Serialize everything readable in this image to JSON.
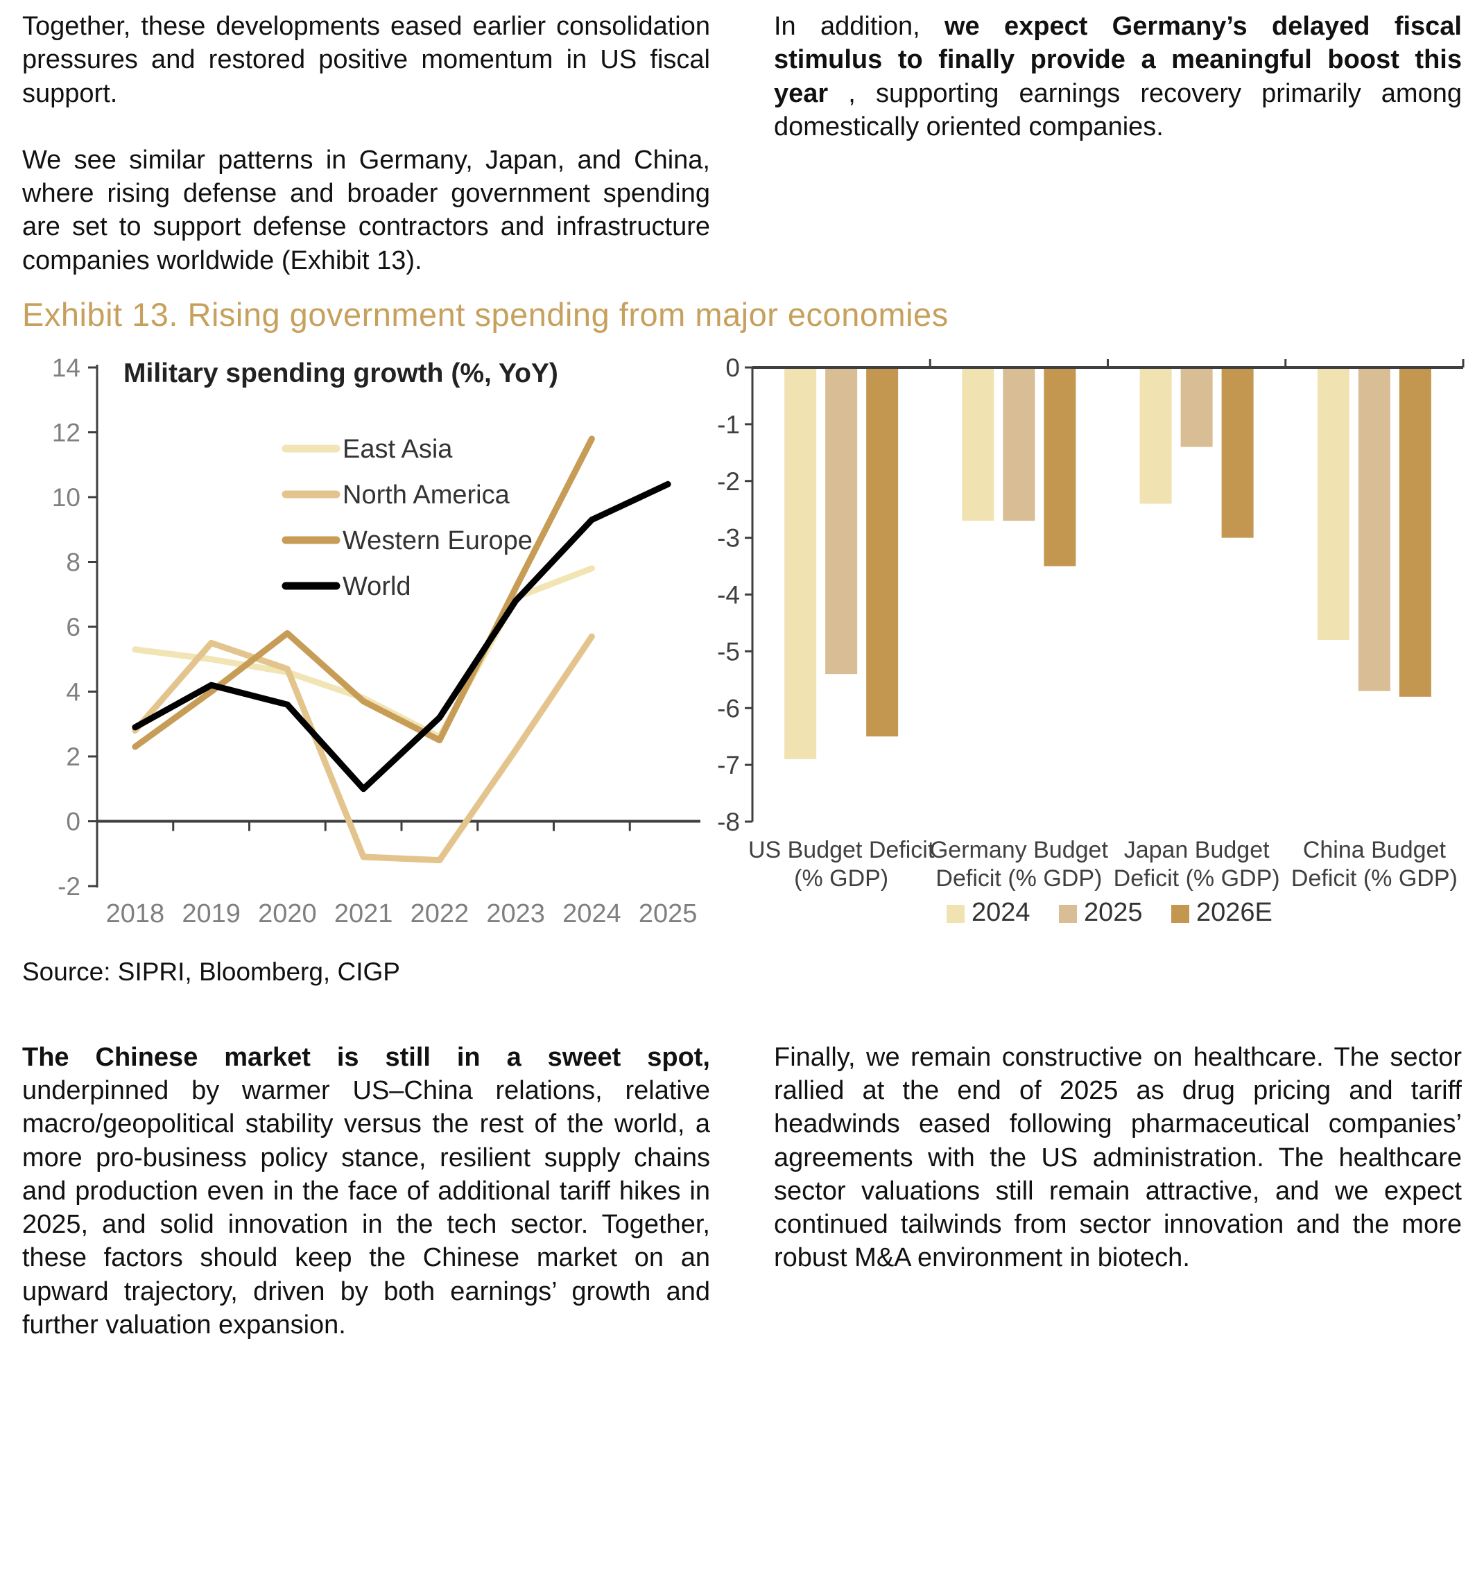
{
  "top_left": {
    "p1": "Together, these developments eased earlier consolidation pressures and restored positive momentum in US fiscal support.",
    "p2": "We see similar patterns in Germany, Japan, and China, where rising defense and broader government spending are set to support defense contractors and infrastructure companies worldwide (Exhibit 13)."
  },
  "top_right": {
    "prefix": "In addition, ",
    "bold": "we expect Germany’s delayed fiscal stimulus to finally provide a meaningful boost this year",
    "suffix": " , supporting earnings recovery primarily among domestically oriented companies."
  },
  "exhibit": {
    "title": "Exhibit 13. Rising government spending from major economies",
    "title_color": "#C6A05C"
  },
  "source_line": "Source: SIPRI, Bloomberg, CIGP",
  "bottom_left": {
    "bold": "The Chinese market is still in a sweet spot,",
    "rest": " underpinned by warmer US–China relations, relative macro/geopolitical stability versus the rest of the world, a more pro-business policy stance, resilient supply chains and production even in the face of additional tariff hikes in 2025, and solid innovation in the tech sector. Together, these factors should keep the Chinese market on an upward trajectory, driven by both earnings’ growth and further valuation expansion."
  },
  "bottom_right": {
    "p1": "Finally, we remain constructive on healthcare. The sector rallied at the end of 2025 as drug pricing and tariff headwinds eased following pharmaceutical companies’ agreements with the US administration. The healthcare sector valuations still remain attractive, and we expect continued tailwinds from sector innovation and the more robust M&A environment in biotech."
  },
  "chart_data": [
    {
      "type": "line",
      "title": "Military spending growth (%, YoY)",
      "categories": [
        "2018",
        "2019",
        "2020",
        "2021",
        "2022",
        "2023",
        "2024",
        "2025"
      ],
      "xlabel": "",
      "ylabel": "",
      "ylim": [
        -2,
        14
      ],
      "ytick_step": 2,
      "grid": false,
      "legend_position": "inside-upper-left",
      "axis_color": "#3F3F3F",
      "tick_label_color": "#7F7F7F",
      "series": [
        {
          "name": "East Asia",
          "color": "#F2E5B5",
          "values": [
            5.3,
            5.0,
            4.6,
            3.8,
            2.6,
            6.9,
            7.8,
            null
          ]
        },
        {
          "name": "North America",
          "color": "#E3C48D",
          "values": [
            2.8,
            5.5,
            4.7,
            -1.1,
            -1.2,
            2.2,
            5.7,
            null
          ]
        },
        {
          "name": "Western Europe",
          "color": "#C79C56",
          "values": [
            2.3,
            4.0,
            5.8,
            3.7,
            2.5,
            7.2,
            11.8,
            null
          ]
        },
        {
          "name": "World",
          "color": "#000000",
          "values": [
            2.9,
            4.2,
            3.6,
            1.0,
            3.2,
            6.8,
            9.3,
            10.4
          ]
        }
      ]
    },
    {
      "type": "bar",
      "title": "",
      "categories": [
        [
          "US Budget Deficit",
          "(% GDP)"
        ],
        [
          "Germany Budget",
          "Deficit (% GDP)"
        ],
        [
          "Japan Budget",
          "Deficit (% GDP)"
        ],
        [
          "China Budget",
          "Deficit (% GDP)"
        ]
      ],
      "ylim": [
        -8,
        0
      ],
      "ytick_step": 1,
      "grid": false,
      "legend_position": "bottom",
      "axis_color": "#3F3F3F",
      "tick_label_color": "#404040",
      "series": [
        {
          "name": "2024",
          "color": "#F0E3B1",
          "values": [
            -6.9,
            -2.7,
            -2.4,
            -4.8
          ]
        },
        {
          "name": "2025",
          "color": "#D9BD95",
          "values": [
            -5.4,
            -2.7,
            -1.4,
            -5.7
          ]
        },
        {
          "name": "2026E",
          "color": "#C49750",
          "values": [
            -6.5,
            -3.5,
            -3.0,
            -5.8
          ]
        }
      ]
    }
  ]
}
